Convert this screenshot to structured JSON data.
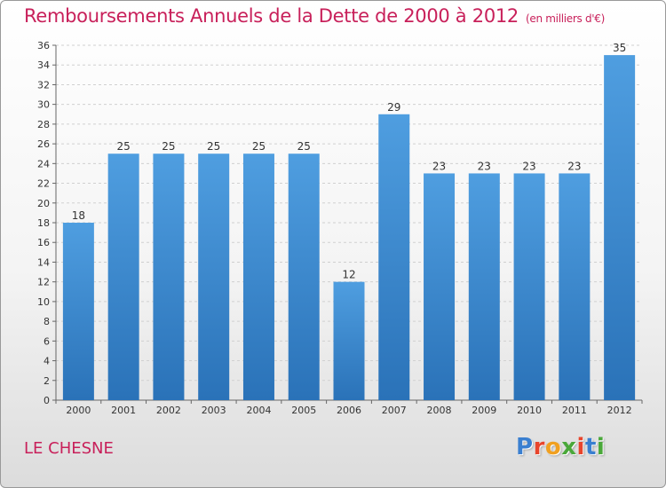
{
  "title": "Remboursements Annuels de la Dette de 2000 à 2012",
  "unit": "(en milliers d'€)",
  "city": "LE CHESNE",
  "logo": {
    "letters": [
      "P",
      "r",
      "o",
      "x",
      "i",
      "t",
      "i"
    ],
    "colors": [
      "#3a7fd0",
      "#e8452c",
      "#f0a020",
      "#4aa83a",
      "#e8452c",
      "#3a7fd0",
      "#4aa83a"
    ]
  },
  "chart_data": {
    "type": "bar",
    "categories": [
      "2000",
      "2001",
      "2002",
      "2003",
      "2004",
      "2005",
      "2006",
      "2007",
      "2008",
      "2009",
      "2010",
      "2011",
      "2012"
    ],
    "values": [
      18,
      25,
      25,
      25,
      25,
      25,
      12,
      29,
      23,
      23,
      23,
      23,
      35
    ],
    "ylim": [
      0,
      36
    ],
    "yticks": [
      0,
      2,
      4,
      6,
      8,
      10,
      12,
      14,
      16,
      18,
      20,
      22,
      24,
      26,
      28,
      30,
      32,
      34,
      36
    ],
    "grid": true,
    "bar_color": "#4f9ee0",
    "bar_color_dark": "#2a72b8"
  }
}
